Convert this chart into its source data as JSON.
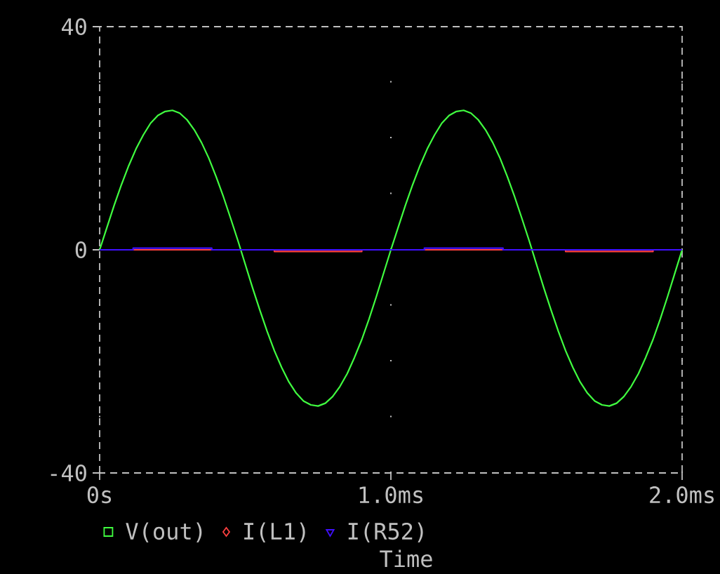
{
  "chart_data": {
    "type": "line",
    "xlabel": "Time",
    "x": [
      0,
      0.025,
      0.05,
      0.075,
      0.1,
      0.125,
      0.15,
      0.175,
      0.2,
      0.225,
      0.25,
      0.275,
      0.3,
      0.325,
      0.35,
      0.375,
      0.4,
      0.425,
      0.45,
      0.475,
      0.5,
      0.525,
      0.55,
      0.575,
      0.6,
      0.625,
      0.65,
      0.675,
      0.7,
      0.725,
      0.75,
      0.775,
      0.8,
      0.825,
      0.85,
      0.875,
      0.9,
      0.925,
      0.95,
      0.975,
      1.0,
      1.025,
      1.05,
      1.075,
      1.1,
      1.125,
      1.15,
      1.175,
      1.2,
      1.225,
      1.25,
      1.275,
      1.3,
      1.325,
      1.35,
      1.375,
      1.4,
      1.425,
      1.45,
      1.475,
      1.5,
      1.525,
      1.55,
      1.575,
      1.6,
      1.625,
      1.65,
      1.675,
      1.7,
      1.725,
      1.75,
      1.775,
      1.8,
      1.825,
      1.85,
      1.875,
      1.9,
      1.925,
      1.95,
      1.975,
      2.0
    ],
    "series": [
      {
        "name": "V(out)",
        "color": "#40ff40",
        "values": [
          0,
          4.0,
          8.0,
          11.7,
          15.1,
          18.1,
          20.6,
          22.7,
          24.1,
          24.8,
          25.0,
          24.5,
          23.3,
          21.5,
          19.2,
          16.4,
          13.1,
          9.5,
          5.6,
          1.6,
          -2.6,
          -6.8,
          -10.8,
          -14.6,
          -18.1,
          -21.1,
          -23.7,
          -25.7,
          -27.1,
          -27.8,
          -28.0,
          -27.5,
          -26.3,
          -24.5,
          -22.2,
          -19.3,
          -16.1,
          -12.4,
          -8.4,
          -4.2,
          0,
          4.0,
          8.0,
          11.7,
          15.1,
          18.1,
          20.6,
          22.7,
          24.1,
          24.8,
          25.0,
          24.5,
          23.3,
          21.5,
          19.2,
          16.4,
          13.1,
          9.5,
          5.6,
          1.6,
          -2.6,
          -6.8,
          -10.8,
          -14.6,
          -18.1,
          -21.1,
          -23.7,
          -25.7,
          -27.1,
          -27.8,
          -28.0,
          -27.5,
          -26.3,
          -24.5,
          -22.2,
          -19.3,
          -16.1,
          -12.4,
          -8.4,
          -4.2,
          0
        ]
      },
      {
        "name": "I(L1)",
        "color": "#ff4040",
        "type": "step",
        "x": [
          0,
          0.6,
          0.9,
          1.6,
          1.9,
          2.0
        ],
        "values": [
          0,
          -0.3,
          0,
          -0.3,
          0,
          0
        ]
      },
      {
        "name": "I(R52)",
        "color": "#4010ff",
        "type": "step",
        "x": [
          0,
          0.115,
          0.385,
          1.115,
          1.385,
          2.0
        ],
        "values": [
          0,
          0.3,
          0,
          0.3,
          0,
          0
        ]
      }
    ],
    "xlim": [
      0,
      2
    ],
    "xticks": [
      {
        "value": 0,
        "label": "0s"
      },
      {
        "value": 1,
        "label": "1.0ms"
      },
      {
        "value": 2,
        "label": "2.0ms"
      }
    ],
    "ylim": [
      -40,
      40
    ],
    "yticks": [
      -40,
      0,
      40
    ],
    "grid": "x",
    "legend": "bottom"
  }
}
